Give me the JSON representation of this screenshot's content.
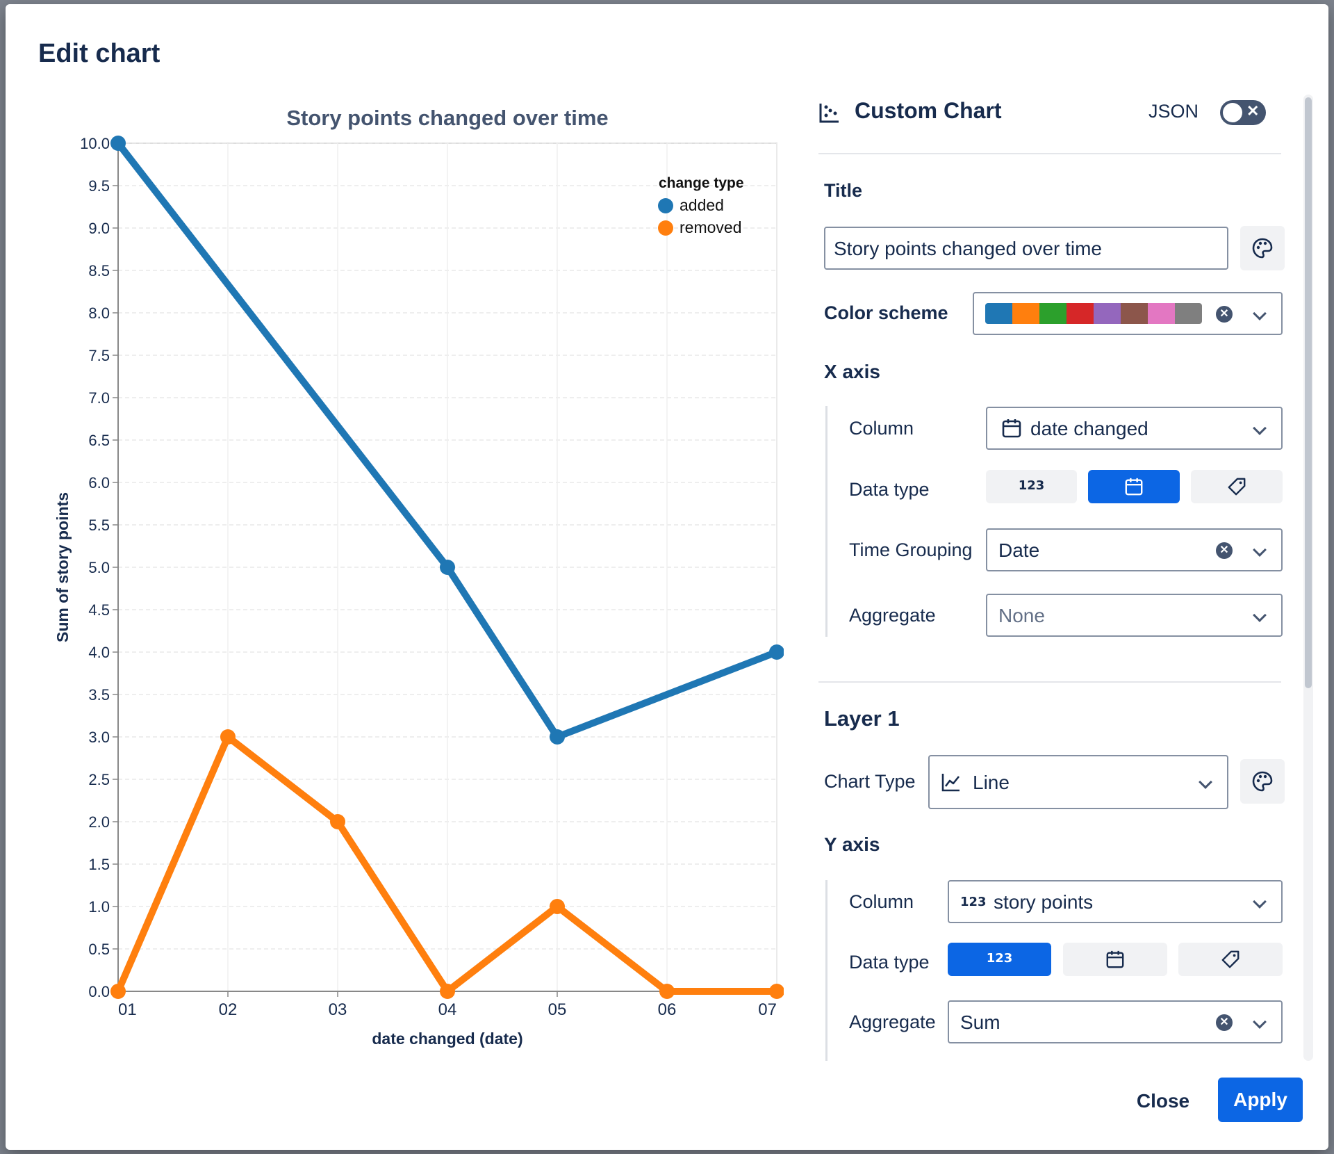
{
  "modal": {
    "title": "Edit chart"
  },
  "panel": {
    "header": {
      "title": "Custom Chart",
      "json_label": "JSON",
      "json_enabled": false
    },
    "title_label": "Title",
    "title_value": "Story points changed over time",
    "color_scheme_label": "Color scheme",
    "color_scheme": [
      "#1f77b4",
      "#ff7f0e",
      "#2ca02c",
      "#d62728",
      "#9467bd",
      "#8c564b",
      "#e377c2",
      "#7f7f7f"
    ],
    "x_axis": {
      "section": "X axis",
      "column_label": "Column",
      "column_value": "date changed",
      "data_type_label": "Data type",
      "data_type_options": [
        "123",
        "calendar-icon",
        "tag-icon"
      ],
      "data_type_selected": "calendar-icon",
      "time_grouping_label": "Time Grouping",
      "time_grouping_value": "Date",
      "aggregate_label": "Aggregate",
      "aggregate_value": "None"
    },
    "layer": {
      "section": "Layer 1",
      "chart_type_label": "Chart Type",
      "chart_type_value": "Line"
    },
    "y_axis": {
      "section": "Y axis",
      "column_label": "Column",
      "column_type_badge": "123",
      "column_value": "story points",
      "data_type_label": "Data type",
      "data_type_options": [
        "123",
        "calendar-icon",
        "tag-icon"
      ],
      "data_type_selected": "123",
      "aggregate_label": "Aggregate",
      "aggregate_value": "Sum"
    }
  },
  "footer": {
    "close_label": "Close",
    "apply_label": "Apply"
  },
  "chart_data": {
    "type": "line",
    "title": "Story points changed over time",
    "xlabel": "date changed (date)",
    "ylabel": "Sum of story points",
    "categories": [
      "01",
      "02",
      "03",
      "04",
      "05",
      "06",
      "07"
    ],
    "ylim": [
      0,
      10
    ],
    "yticks": [
      "0.0",
      "0.5",
      "1.0",
      "1.5",
      "2.0",
      "2.5",
      "3.0",
      "3.5",
      "4.0",
      "4.5",
      "5.0",
      "5.5",
      "6.0",
      "6.5",
      "7.0",
      "7.5",
      "8.0",
      "8.5",
      "9.0",
      "9.5",
      "10.0"
    ],
    "grid": true,
    "legend": {
      "title": "change type",
      "placement": "top-right"
    },
    "series": [
      {
        "name": "added",
        "color": "#1f77b4",
        "points": [
          {
            "x": "01",
            "y": 10
          },
          {
            "x": "04",
            "y": 5
          },
          {
            "x": "05",
            "y": 3
          },
          {
            "x": "07",
            "y": 4
          }
        ]
      },
      {
        "name": "removed",
        "color": "#ff7f0e",
        "points": [
          {
            "x": "01",
            "y": 0
          },
          {
            "x": "02",
            "y": 3
          },
          {
            "x": "03",
            "y": 2
          },
          {
            "x": "04",
            "y": 0
          },
          {
            "x": "05",
            "y": 1
          },
          {
            "x": "06",
            "y": 0
          },
          {
            "x": "07",
            "y": 0
          }
        ]
      }
    ]
  }
}
